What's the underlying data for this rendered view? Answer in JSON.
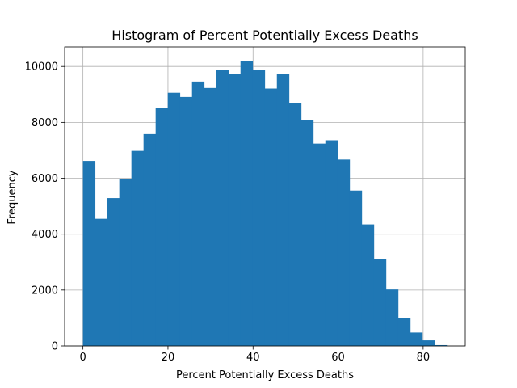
{
  "chart_data": {
    "type": "bar",
    "title": "Histogram of Percent Potentially Excess Deaths",
    "xlabel": "Percent Potentially Excess Deaths",
    "ylabel": "Frequency",
    "xlim": [
      -4.3,
      89.9
    ],
    "ylim": [
      0,
      10700
    ],
    "xticks": [
      0,
      20,
      40,
      60,
      80
    ],
    "yticks": [
      0,
      2000,
      4000,
      6000,
      8000,
      10000
    ],
    "grid": true,
    "bar_color": "#1f77b4",
    "bin_start": 0,
    "bin_width": 2.85,
    "values": [
      6620,
      4550,
      5290,
      5970,
      6980,
      7580,
      8510,
      9060,
      8910,
      9460,
      9230,
      9870,
      9720,
      10190,
      9870,
      9210,
      9730,
      8690,
      8090,
      7240,
      7360,
      6670,
      5560,
      4350,
      3100,
      2020,
      990,
      480,
      200,
      30
    ]
  }
}
